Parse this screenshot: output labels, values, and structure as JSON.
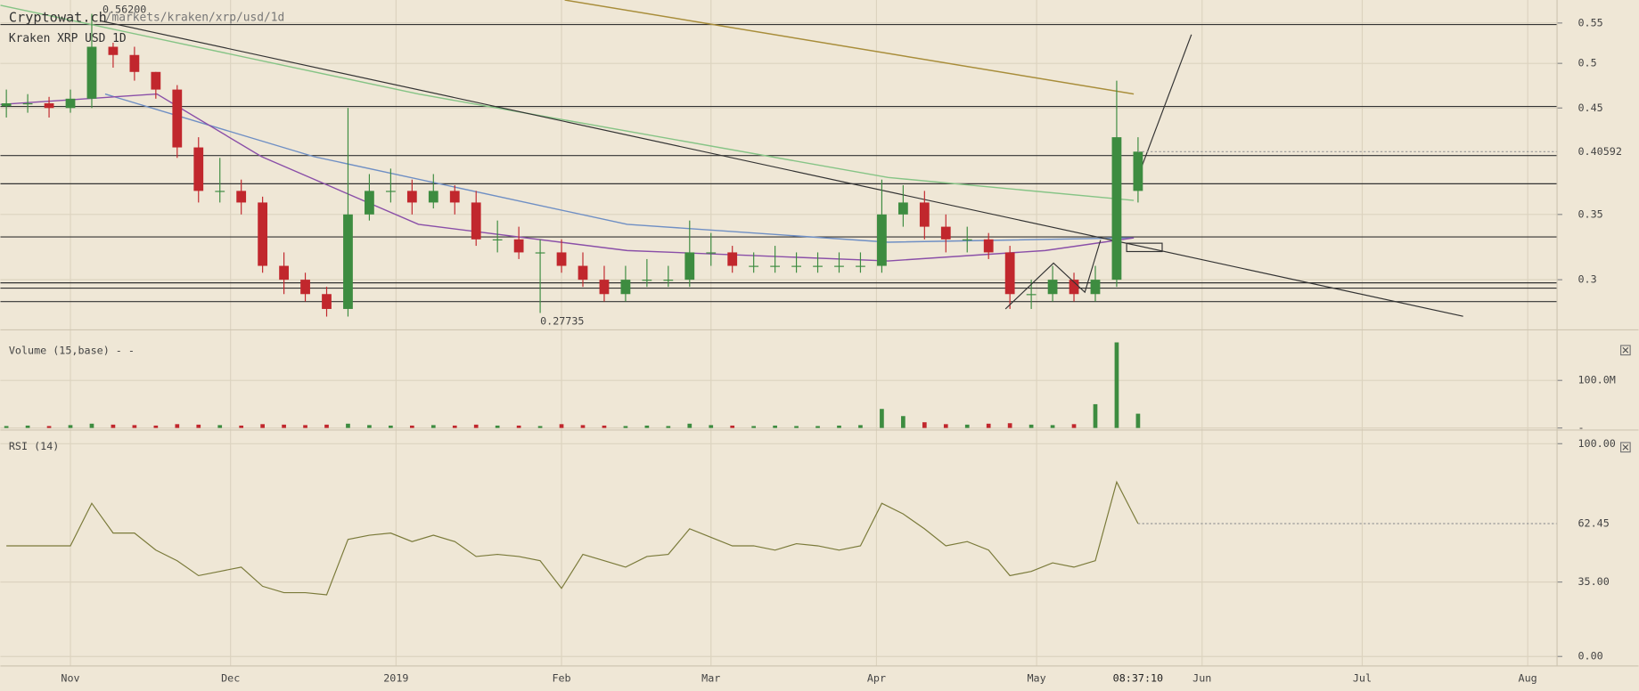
{
  "header": {
    "site": "Cryptowat.ch",
    "path": "/markets/kraken/xrp/usd/1d",
    "pair": "Kraken XRP USD 1D"
  },
  "chart_data": [
    {
      "type": "candlestick",
      "log": true,
      "xlim": [
        -13.11,
        278.5
      ],
      "ylim": [
        0.2685,
        0.5807
      ],
      "yticks": [
        0.3,
        0.35,
        0.45,
        0.5,
        0.55
      ],
      "up_color": "#3d8c40",
      "down_color": "#c1272d",
      "x": [
        -12,
        -8,
        -4,
        0,
        4,
        8,
        12,
        16,
        20,
        24,
        28,
        32,
        36,
        40,
        44,
        48,
        52,
        56,
        60,
        64,
        68,
        72,
        76,
        80,
        84,
        88,
        92,
        96,
        100,
        104,
        108,
        112,
        116,
        120,
        124,
        128,
        132,
        136,
        140,
        144,
        148,
        152,
        156,
        160,
        164,
        168,
        172,
        176,
        180,
        184,
        188,
        192,
        196,
        200
      ],
      "open": [
        0.452,
        0.455,
        0.455,
        0.45,
        0.46,
        0.52,
        0.51,
        0.49,
        0.47,
        0.41,
        0.37,
        0.37,
        0.36,
        0.31,
        0.3,
        0.29,
        0.28,
        0.35,
        0.37,
        0.37,
        0.36,
        0.37,
        0.36,
        0.33,
        0.33,
        0.32,
        0.32,
        0.31,
        0.3,
        0.29,
        0.3,
        0.3,
        0.3,
        0.32,
        0.32,
        0.31,
        0.31,
        0.31,
        0.31,
        0.31,
        0.31,
        0.31,
        0.35,
        0.36,
        0.34,
        0.33,
        0.33,
        0.32,
        0.29,
        0.29,
        0.3,
        0.29,
        0.3,
        0.37
      ],
      "high": [
        0.47,
        0.465,
        0.462,
        0.47,
        0.562,
        0.525,
        0.52,
        0.49,
        0.475,
        0.42,
        0.4,
        0.38,
        0.365,
        0.32,
        0.305,
        0.295,
        0.45,
        0.385,
        0.39,
        0.38,
        0.385,
        0.375,
        0.37,
        0.345,
        0.34,
        0.33,
        0.33,
        0.32,
        0.31,
        0.31,
        0.315,
        0.31,
        0.345,
        0.335,
        0.325,
        0.32,
        0.325,
        0.32,
        0.32,
        0.32,
        0.32,
        0.38,
        0.375,
        0.37,
        0.35,
        0.34,
        0.335,
        0.325,
        0.3,
        0.31,
        0.305,
        0.31,
        0.48,
        0.42
      ],
      "low": [
        0.44,
        0.445,
        0.44,
        0.445,
        0.45,
        0.495,
        0.48,
        0.46,
        0.4,
        0.36,
        0.36,
        0.35,
        0.305,
        0.29,
        0.285,
        0.275,
        0.275,
        0.345,
        0.36,
        0.35,
        0.355,
        0.35,
        0.325,
        0.32,
        0.315,
        0.27735,
        0.305,
        0.295,
        0.285,
        0.285,
        0.295,
        0.295,
        0.295,
        0.31,
        0.305,
        0.305,
        0.305,
        0.305,
        0.305,
        0.305,
        0.305,
        0.305,
        0.34,
        0.33,
        0.32,
        0.32,
        0.315,
        0.28,
        0.28,
        0.285,
        0.285,
        0.285,
        0.295,
        0.36
      ],
      "close": [
        0.455,
        0.455,
        0.45,
        0.46,
        0.52,
        0.51,
        0.49,
        0.47,
        0.41,
        0.37,
        0.37,
        0.36,
        0.31,
        0.3,
        0.29,
        0.28,
        0.35,
        0.37,
        0.37,
        0.36,
        0.37,
        0.36,
        0.33,
        0.33,
        0.32,
        0.32,
        0.31,
        0.3,
        0.29,
        0.3,
        0.3,
        0.3,
        0.32,
        0.32,
        0.31,
        0.31,
        0.31,
        0.31,
        0.31,
        0.31,
        0.31,
        0.35,
        0.36,
        0.34,
        0.33,
        0.33,
        0.32,
        0.29,
        0.29,
        0.3,
        0.29,
        0.3,
        0.42,
        0.40592
      ],
      "current": 0.40592,
      "annotations": [
        {
          "x": 6,
          "value": 0.562,
          "label": "0.56200"
        },
        {
          "x": 88,
          "value": 0.27735
        }
      ],
      "lines": [
        {
          "color": "#a88d3a",
          "x": [
            92.6,
            199.2
          ],
          "values": [
            0.5807,
            0.4651
          ]
        },
        {
          "color": "#86c486",
          "x": [
            -13.1,
            65.2,
            153.2,
            199.2
          ],
          "values": [
            0.5735,
            0.4651,
            0.3819,
            0.3618
          ]
        },
        {
          "color": "#6f8fc4",
          "x": [
            6.5,
            45.6,
            104.3,
            153.2,
            199.2
          ],
          "values": [
            0.4651,
            0.4012,
            0.3419,
            0.3278,
            0.3312
          ]
        },
        {
          "color": "#8a4fa8",
          "x": [
            -13.1,
            16.2,
            35.8,
            65.2,
            104.3,
            153.2,
            182.6,
            199.2
          ],
          "values": [
            0.4538,
            0.4651,
            0.4012,
            0.3419,
            0.3214,
            0.3136,
            0.3214,
            0.3312
          ]
        }
      ],
      "levels": [
        0.548,
        0.4516,
        0.4022,
        0.3763,
        0.3319,
        0.2978,
        0.2941,
        0.2849
      ],
      "trendlines": [
        {
          "x": [
            5.5,
            260.9
          ],
          "values": [
            0.553,
            0.2752
          ]
        },
        {
          "x": [
            199.2,
            210
          ],
          "values": [
            0.3727,
            0.5352
          ]
        }
      ]
    },
    {
      "type": "bar",
      "title": "Volume (15,base) - -",
      "xlim": [
        -13.11,
        278.5
      ],
      "ylim": [
        0,
        197600000
      ],
      "yticks": [
        {
          "value": 0,
          "label": "-"
        },
        {
          "value": 100000000,
          "label": "100.0M"
        }
      ],
      "x": [
        -12,
        -8,
        -4,
        0,
        4,
        8,
        12,
        16,
        20,
        24,
        28,
        32,
        36,
        40,
        44,
        48,
        52,
        56,
        60,
        64,
        68,
        72,
        76,
        80,
        84,
        88,
        92,
        96,
        100,
        104,
        108,
        112,
        116,
        120,
        124,
        128,
        132,
        136,
        140,
        144,
        148,
        152,
        156,
        160,
        164,
        168,
        172,
        176,
        180,
        184,
        188,
        192,
        196,
        200
      ],
      "values": [
        4000000,
        5000000,
        4000000,
        6000000,
        9000000,
        7000000,
        6000000,
        5000000,
        8000000,
        7000000,
        6000000,
        5000000,
        8000000,
        7000000,
        6000000,
        7000000,
        9000000,
        6000000,
        5000000,
        5000000,
        6000000,
        5000000,
        7000000,
        5000000,
        5000000,
        4000000,
        8000000,
        6000000,
        5000000,
        4000000,
        5000000,
        4000000,
        9000000,
        6000000,
        5000000,
        4000000,
        5000000,
        4000000,
        4000000,
        5000000,
        6000000,
        40000000,
        25000000,
        12000000,
        8000000,
        7000000,
        9000000,
        10000000,
        7000000,
        6000000,
        8000000,
        50000000,
        180000000,
        30000000
      ]
    },
    {
      "type": "line",
      "title": "RSI (14)",
      "color": "#7a7a3a",
      "xlim": [
        -13.11,
        278.5
      ],
      "ylim": [
        -3.96,
        104.95
      ],
      "yticks": [
        {
          "value": 0,
          "label": "0.00"
        },
        {
          "value": 35,
          "label": "35.00"
        },
        {
          "value": 100,
          "label": "100.00"
        }
      ],
      "current": 62.45,
      "countdown": "08:37:10",
      "xticks": [
        {
          "value": 0,
          "label": "Nov"
        },
        {
          "value": 30,
          "label": "Dec"
        },
        {
          "value": 61,
          "label": "2019"
        },
        {
          "value": 92,
          "label": "Feb"
        },
        {
          "value": 120,
          "label": "Mar"
        },
        {
          "value": 151,
          "label": "Apr"
        },
        {
          "value": 181,
          "label": "May"
        },
        {
          "value": 212,
          "label": "Jun"
        },
        {
          "value": 242,
          "label": "Jul"
        },
        {
          "value": 273,
          "label": "Aug"
        }
      ],
      "x": [
        -12,
        -8,
        -4,
        0,
        4,
        8,
        12,
        16,
        20,
        24,
        28,
        32,
        36,
        40,
        44,
        48,
        52,
        56,
        60,
        64,
        68,
        72,
        76,
        80,
        84,
        88,
        92,
        96,
        100,
        104,
        108,
        112,
        116,
        120,
        124,
        128,
        132,
        136,
        140,
        144,
        148,
        152,
        156,
        160,
        164,
        168,
        172,
        176,
        180,
        184,
        188,
        192,
        196,
        200
      ],
      "values": [
        52,
        52,
        52,
        52,
        72,
        58,
        58,
        50,
        45,
        38,
        40,
        42,
        33,
        30,
        30,
        29,
        55,
        57,
        58,
        54,
        57,
        54,
        47,
        48,
        47,
        45,
        32,
        48,
        45,
        42,
        47,
        48,
        60,
        56,
        52,
        52,
        50,
        53,
        52,
        50,
        52,
        72,
        67,
        60,
        52,
        54,
        50,
        38,
        40,
        44,
        42,
        45,
        82,
        62.45
      ]
    }
  ]
}
